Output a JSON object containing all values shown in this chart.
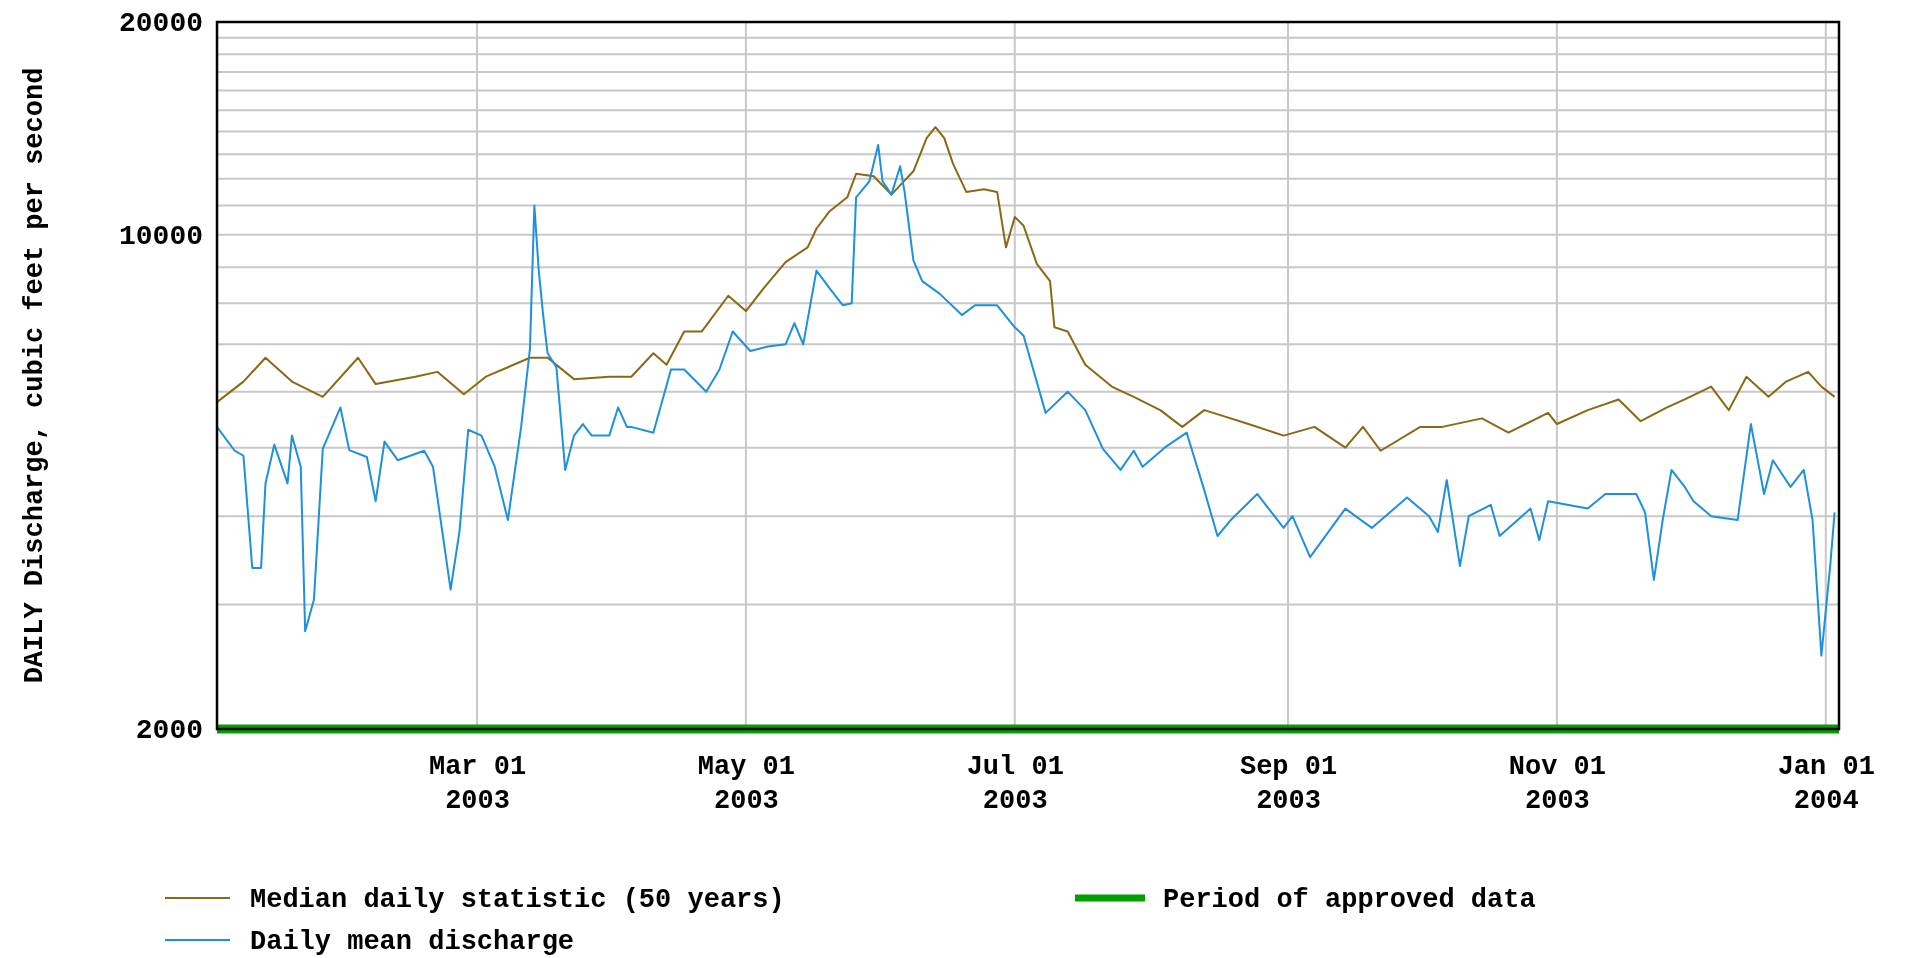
{
  "chart_data": {
    "type": "line",
    "ylabel": "DAILY Discharge, cubic feet per second",
    "log": true,
    "grid": true,
    "legend": "bottom",
    "xlim": [
      "2003-01-01",
      "2004-01-04"
    ],
    "xticks": [
      {
        "value": "2003-03-01",
        "label": "Mar 01\n2003"
      },
      {
        "value": "2003-05-01",
        "label": "May 01\n2003"
      },
      {
        "value": "2003-07-01",
        "label": "Jul 01\n2003"
      },
      {
        "value": "2003-09-01",
        "label": "Sep 01\n2003"
      },
      {
        "value": "2003-11-01",
        "label": "Nov 01\n2003"
      },
      {
        "value": "2004-01-01",
        "label": "Jan 01\n2004"
      }
    ],
    "ylim": [
      2000,
      20000
    ],
    "yticks": [
      2000,
      {
        "value": 3000,
        "label": null
      },
      {
        "value": 4000,
        "label": null
      },
      {
        "value": 5000,
        "label": null
      },
      {
        "value": 6000,
        "label": null
      },
      {
        "value": 7000,
        "label": null
      },
      {
        "value": 8000,
        "label": null
      },
      {
        "value": 9000,
        "label": null
      },
      10000,
      {
        "value": 11000,
        "label": null
      },
      {
        "value": 12000,
        "label": null
      },
      {
        "value": 13000,
        "label": null
      },
      {
        "value": 14000,
        "label": null
      },
      {
        "value": 15000,
        "label": null
      },
      {
        "value": 16000,
        "label": null
      },
      {
        "value": 17000,
        "label": null
      },
      {
        "value": 18000,
        "label": null
      },
      {
        "value": 19000,
        "label": null
      },
      20000
    ],
    "series": [
      {
        "name": "Median daily statistic (50 years)",
        "color": "#8b6914",
        "x": [
          "2003-01-01",
          "2003-01-07",
          "2003-01-12",
          "2003-01-18",
          "2003-01-25",
          "2003-02-02",
          "2003-02-06",
          "2003-02-15",
          "2003-02-20",
          "2003-02-26",
          "2003-03-03",
          "2003-03-13",
          "2003-03-17",
          "2003-03-23",
          "2003-03-31",
          "2003-04-05",
          "2003-04-10",
          "2003-04-13",
          "2003-04-17",
          "2003-04-21",
          "2003-04-27",
          "2003-05-01",
          "2003-05-05",
          "2003-05-10",
          "2003-05-15",
          "2003-05-17",
          "2003-05-20",
          "2003-05-24",
          "2003-05-26",
          "2003-05-30",
          "2003-06-03",
          "2003-06-08",
          "2003-06-11",
          "2003-06-13",
          "2003-06-15",
          "2003-06-17",
          "2003-06-20",
          "2003-06-24",
          "2003-06-27",
          "2003-06-29",
          "2003-07-01",
          "2003-07-03",
          "2003-07-06",
          "2003-07-09",
          "2003-07-10",
          "2003-07-13",
          "2003-07-17",
          "2003-07-23",
          "2003-07-28",
          "2003-08-03",
          "2003-08-08",
          "2003-08-13",
          "2003-08-17",
          "2003-08-23",
          "2003-08-31",
          "2003-09-07",
          "2003-09-14",
          "2003-09-18",
          "2003-09-22",
          "2003-10-01",
          "2003-10-06",
          "2003-10-15",
          "2003-10-21",
          "2003-10-30",
          "2003-11-01",
          "2003-11-08",
          "2003-11-15",
          "2003-11-20",
          "2003-11-26",
          "2003-11-30",
          "2003-12-06",
          "2003-12-10",
          "2003-12-14",
          "2003-12-19",
          "2003-12-23",
          "2003-12-28",
          "2003-12-31",
          "2004-01-03"
        ],
        "values": [
          5800,
          6200,
          6700,
          6200,
          5900,
          6700,
          6150,
          6300,
          6400,
          5950,
          6300,
          6700,
          6700,
          6250,
          6300,
          6300,
          6800,
          6550,
          7300,
          7300,
          8200,
          7800,
          8400,
          9150,
          9600,
          10200,
          10800,
          11300,
          12200,
          12100,
          11400,
          12300,
          13700,
          14200,
          13700,
          12600,
          11500,
          11600,
          11500,
          9600,
          10600,
          10300,
          9100,
          8600,
          7400,
          7300,
          6550,
          6100,
          5900,
          5650,
          5350,
          5650,
          5550,
          5400,
          5200,
          5350,
          5000,
          5350,
          4950,
          5350,
          5350,
          5500,
          5250,
          5600,
          5400,
          5650,
          5850,
          5450,
          5700,
          5850,
          6100,
          5650,
          6300,
          5900,
          6200,
          6400,
          6100,
          5900
        ]
      },
      {
        "name": "Period of approved data",
        "color": "#00a000",
        "x": [
          "2003-01-01",
          "2004-01-04"
        ],
        "values": [
          2000,
          2000
        ]
      },
      {
        "name": "Daily mean discharge",
        "color": "#1e90dd",
        "x": [
          "2003-01-01",
          "2003-01-05",
          "2003-01-07",
          "2003-01-09",
          "2003-01-11",
          "2003-01-12",
          "2003-01-14",
          "2003-01-17",
          "2003-01-18",
          "2003-01-20",
          "2003-01-21",
          "2003-01-23",
          "2003-01-25",
          "2003-01-29",
          "2003-01-31",
          "2003-02-04",
          "2003-02-06",
          "2003-02-08",
          "2003-02-11",
          "2003-02-17",
          "2003-02-19",
          "2003-02-23",
          "2003-02-25",
          "2003-02-27",
          "2003-03-02",
          "2003-03-05",
          "2003-03-08",
          "2003-03-11",
          "2003-03-13",
          "2003-03-14",
          "2003-03-15",
          "2003-03-16",
          "2003-03-17",
          "2003-03-19",
          "2003-03-21",
          "2003-03-23",
          "2003-03-25",
          "2003-03-27",
          "2003-03-31",
          "2003-04-02",
          "2003-04-04",
          "2003-04-05",
          "2003-04-10",
          "2003-04-14",
          "2003-04-17",
          "2003-04-22",
          "2003-04-25",
          "2003-04-28",
          "2003-05-02",
          "2003-05-06",
          "2003-05-10",
          "2003-05-12",
          "2003-05-14",
          "2003-05-17",
          "2003-05-20",
          "2003-05-23",
          "2003-05-25",
          "2003-05-26",
          "2003-05-29",
          "2003-05-31",
          "2003-06-01",
          "2003-06-03",
          "2003-06-05",
          "2003-06-06",
          "2003-06-08",
          "2003-06-10",
          "2003-06-14",
          "2003-06-19",
          "2003-06-22",
          "2003-06-27",
          "2003-07-01",
          "2003-07-03",
          "2003-07-08",
          "2003-07-13",
          "2003-07-17",
          "2003-07-21",
          "2003-07-25",
          "2003-07-28",
          "2003-07-30",
          "2003-08-04",
          "2003-08-09",
          "2003-08-13",
          "2003-08-16",
          "2003-08-19",
          "2003-08-25",
          "2003-08-31",
          "2003-09-02",
          "2003-09-06",
          "2003-09-14",
          "2003-09-20",
          "2003-09-28",
          "2003-10-03",
          "2003-10-05",
          "2003-10-07",
          "2003-10-10",
          "2003-10-12",
          "2003-10-17",
          "2003-10-19",
          "2003-10-26",
          "2003-10-28",
          "2003-10-30",
          "2003-11-08",
          "2003-11-12",
          "2003-11-19",
          "2003-11-21",
          "2003-11-23",
          "2003-11-25",
          "2003-11-27",
          "2003-11-30",
          "2003-12-02",
          "2003-12-06",
          "2003-12-12",
          "2003-12-15",
          "2003-12-18",
          "2003-12-20",
          "2003-12-24",
          "2003-12-27",
          "2003-12-29",
          "2003-12-31",
          "2004-01-02",
          "2004-01-03"
        ],
        "values": [
          5350,
          4950,
          4870,
          3380,
          3380,
          4450,
          5050,
          4450,
          5200,
          4700,
          2750,
          3050,
          4980,
          5700,
          4960,
          4850,
          4200,
          5100,
          4800,
          4950,
          4700,
          3150,
          3800,
          5300,
          5200,
          4700,
          3950,
          5350,
          6900,
          11000,
          8900,
          7700,
          6800,
          6500,
          4650,
          5200,
          5400,
          5200,
          5200,
          5700,
          5350,
          5350,
          5250,
          6450,
          6450,
          6000,
          6450,
          7300,
          6850,
          6950,
          7000,
          7500,
          7000,
          8900,
          8400,
          7950,
          8000,
          11300,
          11900,
          13400,
          11900,
          11400,
          12500,
          11500,
          9200,
          8600,
          8250,
          7700,
          7950,
          7950,
          7400,
          7200,
          5600,
          6000,
          5650,
          4980,
          4650,
          4950,
          4700,
          5000,
          5250,
          4350,
          3750,
          3950,
          4300,
          3850,
          4000,
          3500,
          4100,
          3850,
          4250,
          4000,
          3800,
          4500,
          3400,
          4000,
          4150,
          3750,
          4100,
          3700,
          4200,
          4100,
          4300,
          4300,
          4050,
          3250,
          3950,
          4650,
          4400,
          4200,
          4000,
          3950,
          5400,
          4300,
          4800,
          4400,
          4650,
          3950,
          2540,
          3400,
          4050
        ]
      }
    ]
  }
}
